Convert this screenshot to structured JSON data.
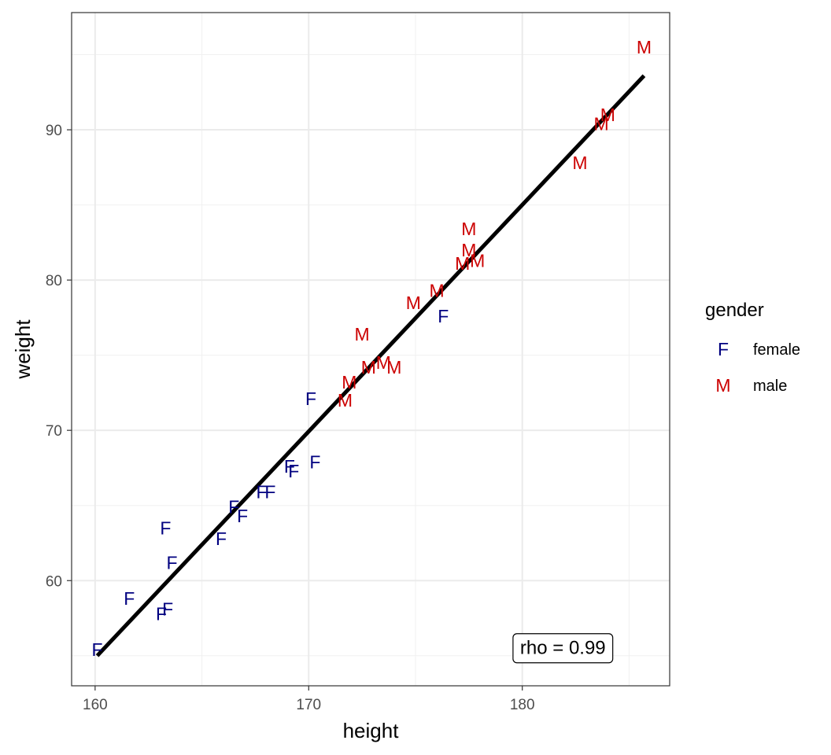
{
  "chart_data": {
    "type": "scatter",
    "title": "",
    "xlabel": "height",
    "ylabel": "weight",
    "xlim": [
      158.9,
      186.9
    ],
    "ylim": [
      53.0,
      97.8
    ],
    "xticks": [
      160,
      170,
      180
    ],
    "yticks": [
      60,
      70,
      80,
      90
    ],
    "grid": true,
    "legend": {
      "title": "gender",
      "position": "right",
      "entries": [
        {
          "key": "F",
          "label": "female",
          "color": "#000080"
        },
        {
          "key": "M",
          "label": "male",
          "color": "#cc0000"
        }
      ]
    },
    "series": [
      {
        "name": "female",
        "marker": "F",
        "color": "#000080",
        "points": [
          [
            160.1,
            55.4
          ],
          [
            161.6,
            58.8
          ],
          [
            163.1,
            57.8
          ],
          [
            163.4,
            58.1
          ],
          [
            163.6,
            61.2
          ],
          [
            163.3,
            63.5
          ],
          [
            165.9,
            62.8
          ],
          [
            166.5,
            64.9
          ],
          [
            166.9,
            64.3
          ],
          [
            167.8,
            65.9
          ],
          [
            168.2,
            65.9
          ],
          [
            169.1,
            67.6
          ],
          [
            169.3,
            67.3
          ],
          [
            170.3,
            67.9
          ],
          [
            170.1,
            72.1
          ],
          [
            176.3,
            77.6
          ]
        ]
      },
      {
        "name": "male",
        "marker": "M",
        "color": "#cc0000",
        "points": [
          [
            171.7,
            72.0
          ],
          [
            171.9,
            73.2
          ],
          [
            172.8,
            74.2
          ],
          [
            173.5,
            74.5
          ],
          [
            174.0,
            74.2
          ],
          [
            172.5,
            76.4
          ],
          [
            174.9,
            78.5
          ],
          [
            176.0,
            79.3
          ],
          [
            177.2,
            81.1
          ],
          [
            177.5,
            82.0
          ],
          [
            177.9,
            81.3
          ],
          [
            177.5,
            83.4
          ],
          [
            182.7,
            87.8
          ],
          [
            183.7,
            90.4
          ],
          [
            184.0,
            91.0
          ],
          [
            185.7,
            95.5
          ]
        ]
      }
    ],
    "fit_line": {
      "x": [
        160.1,
        185.7
      ],
      "y": [
        55.0,
        93.6
      ],
      "color": "#000000"
    },
    "annotation": {
      "text": "rho = 0.99",
      "x": 181.9,
      "y": 55.5
    }
  }
}
